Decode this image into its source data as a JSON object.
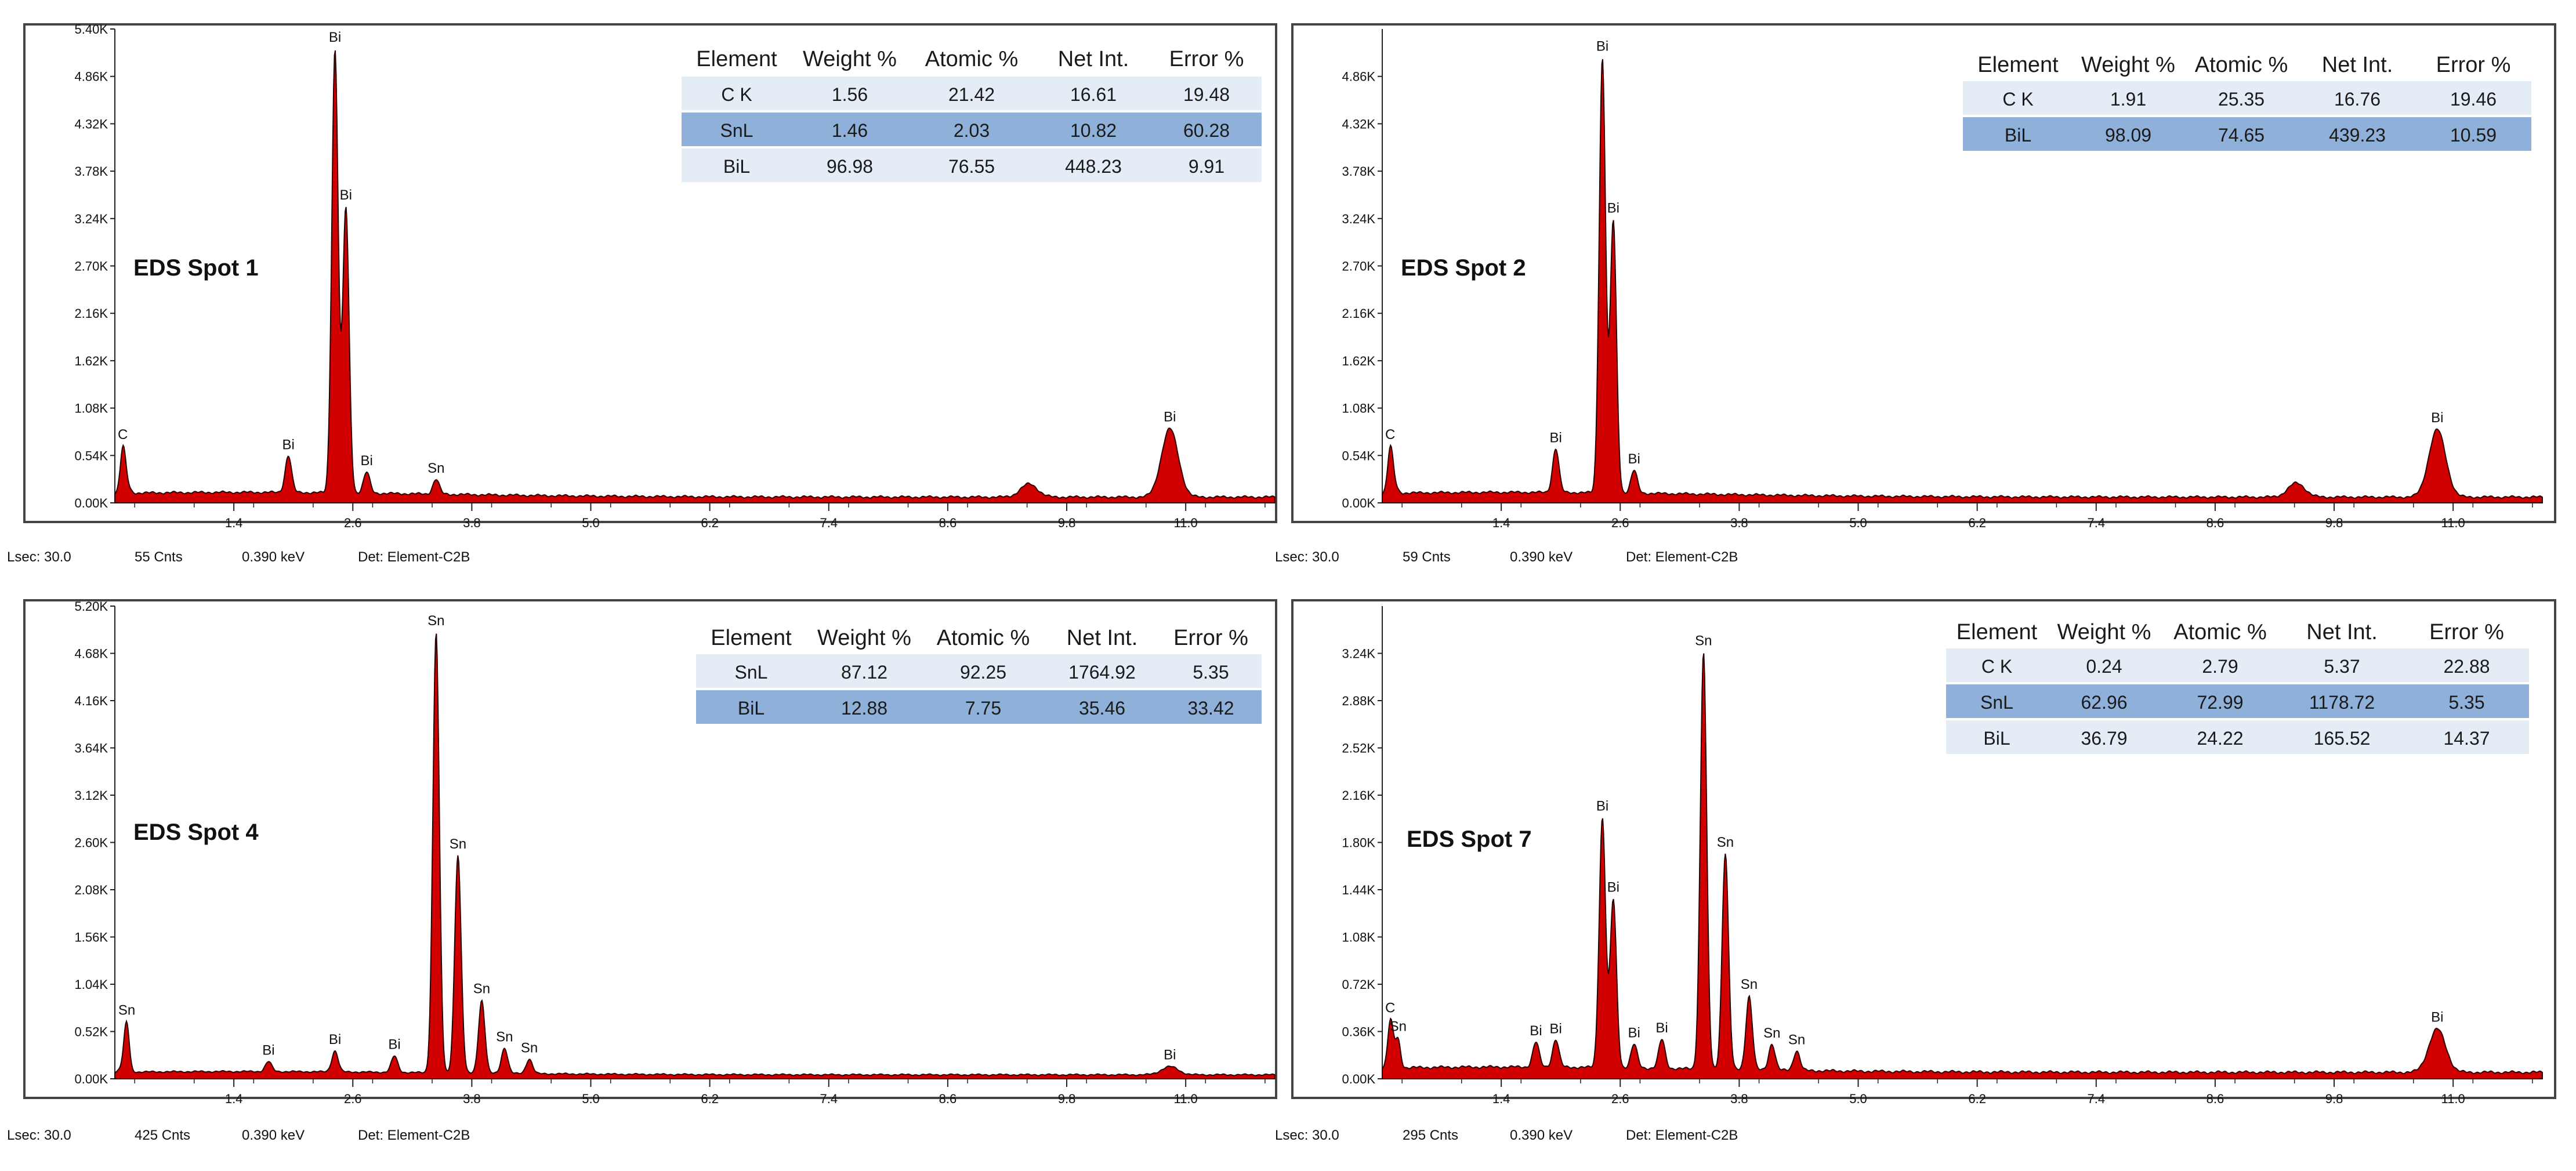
{
  "chart_data": [
    {
      "type": "area",
      "title": "EDS Spot 1",
      "xlim": [
        0.2,
        11.9
      ],
      "ylim": [
        0,
        5400
      ],
      "x_ticks": [
        "1.4",
        "2.6",
        "3.8",
        "5.0",
        "6.2",
        "7.4",
        "8.6",
        "9.8",
        "11.0"
      ],
      "y_ticks": [
        "0.00K",
        "0.54K",
        "1.08K",
        "1.62K",
        "2.16K",
        "2.70K",
        "3.24K",
        "3.78K",
        "4.32K",
        "4.86K",
        "5.40K"
      ],
      "y_tick_values": [
        0,
        540,
        1080,
        1620,
        2160,
        2700,
        3240,
        3780,
        4320,
        4860,
        5400
      ],
      "series": [
        {
          "name": "spectrum",
          "baseline": 120,
          "peaks": [
            {
              "label": "C",
              "x": 0.28,
              "y": 380
            },
            {
              "label": "Bi",
              "x": 1.95,
              "y": 420
            },
            {
              "label": "Bi",
              "x": 2.42,
              "y": 5050
            },
            {
              "label": "Bi",
              "x": 2.53,
              "y": 3250
            },
            {
              "label": "Bi",
              "x": 2.74,
              "y": 240
            },
            {
              "label": "Sn",
              "x": 3.44,
              "y": 170
            },
            {
              "label": "",
              "x": 9.42,
              "y": 150
            },
            {
              "label": "Bi",
              "x": 10.84,
              "y": 780
            }
          ]
        }
      ],
      "table": {
        "headers": [
          "Element",
          "Weight %",
          "Atomic %",
          "Net Int.",
          "Error %"
        ],
        "rows": [
          [
            "C K",
            "1.56",
            "21.42",
            "16.61",
            "19.48"
          ],
          [
            "SnL",
            "1.46",
            "2.03",
            "10.82",
            "60.28"
          ],
          [
            "BiL",
            "96.98",
            "76.55",
            "448.23",
            "9.91"
          ]
        ]
      },
      "footer": {
        "lsec": "Lsec: 30.0",
        "cnts": "55 Cnts",
        "kev": "0.390 keV",
        "det": "Det: Element-C2B"
      }
    },
    {
      "type": "area",
      "title": "EDS Spot 2",
      "xlim": [
        0.2,
        11.9
      ],
      "ylim": [
        0,
        5400
      ],
      "x_ticks": [
        "1.4",
        "2.6",
        "3.8",
        "5.0",
        "6.2",
        "7.4",
        "8.6",
        "9.8",
        "11.0"
      ],
      "y_ticks": [
        "0.00K",
        "0.54K",
        "1.08K",
        "1.62K",
        "2.16K",
        "2.70K",
        "3.24K",
        "3.78K",
        "4.32K",
        "4.86K"
      ],
      "y_tick_values": [
        0,
        540,
        1080,
        1620,
        2160,
        2700,
        3240,
        3780,
        4320,
        4860
      ],
      "series": [
        {
          "name": "spectrum",
          "baseline": 120,
          "peaks": [
            {
              "label": "C",
              "x": 0.28,
              "y": 380
            },
            {
              "label": "Bi",
              "x": 1.95,
              "y": 500
            },
            {
              "label": "Bi",
              "x": 2.42,
              "y": 4950
            },
            {
              "label": "Bi",
              "x": 2.53,
              "y": 3100
            },
            {
              "label": "Bi",
              "x": 2.74,
              "y": 260
            },
            {
              "label": "",
              "x": 9.42,
              "y": 160
            },
            {
              "label": "Bi",
              "x": 10.84,
              "y": 770
            }
          ]
        }
      ],
      "table": {
        "headers": [
          "Element",
          "Weight %",
          "Atomic %",
          "Net Int.",
          "Error %"
        ],
        "rows": [
          [
            "C K",
            "1.91",
            "25.35",
            "16.76",
            "19.46"
          ],
          [
            "BiL",
            "98.09",
            "74.65",
            "439.23",
            "10.59"
          ]
        ]
      },
      "footer": {
        "lsec": "Lsec: 30.0",
        "cnts": "59 Cnts",
        "kev": "0.390 keV",
        "det": "Det: Element-C2B"
      }
    },
    {
      "type": "area",
      "title": "EDS Spot 4",
      "xlim": [
        0.2,
        11.9
      ],
      "ylim": [
        0,
        5200
      ],
      "x_ticks": [
        "1.4",
        "2.6",
        "3.8",
        "5.0",
        "6.2",
        "7.4",
        "8.6",
        "9.8",
        "11.0"
      ],
      "y_ticks": [
        "0.00K",
        "0.52K",
        "1.04K",
        "1.56K",
        "2.08K",
        "2.60K",
        "3.12K",
        "3.64K",
        "4.16K",
        "4.68K",
        "5.20K"
      ],
      "y_tick_values": [
        0,
        520,
        1040,
        1560,
        2080,
        2600,
        3120,
        3640,
        4160,
        4680,
        5200
      ],
      "series": [
        {
          "name": "spectrum",
          "baseline": 80,
          "peaks": [
            {
              "label": "Sn",
              "x": 0.32,
              "y": 450
            },
            {
              "label": "Bi",
              "x": 1.75,
              "y": 110
            },
            {
              "label": "Bi",
              "x": 2.42,
              "y": 230
            },
            {
              "label": "Bi",
              "x": 3.02,
              "y": 180
            },
            {
              "label": "Sn",
              "x": 3.44,
              "y": 4850
            },
            {
              "label": "Sn",
              "x": 3.66,
              "y": 2400
            },
            {
              "label": "Sn",
              "x": 3.9,
              "y": 800
            },
            {
              "label": "Sn",
              "x": 4.13,
              "y": 280
            },
            {
              "label": "Sn",
              "x": 4.38,
              "y": 160
            },
            {
              "label": "Bi",
              "x": 10.84,
              "y": 90
            }
          ]
        }
      ],
      "table": {
        "headers": [
          "Element",
          "Weight %",
          "Atomic %",
          "Net Int.",
          "Error %"
        ],
        "rows": [
          [
            "SnL",
            "87.12",
            "92.25",
            "1764.92",
            "5.35"
          ],
          [
            "BiL",
            "12.88",
            "7.75",
            "35.46",
            "33.42"
          ]
        ]
      },
      "footer": {
        "lsec": "Lsec: 30.0",
        "cnts": "425 Cnts",
        "kev": "0.390 keV",
        "det": "Det: Element-C2B"
      }
    },
    {
      "type": "area",
      "title": "EDS Spot 7",
      "xlim": [
        0.2,
        11.9
      ],
      "ylim": [
        0,
        3600
      ],
      "x_ticks": [
        "1.4",
        "2.6",
        "3.8",
        "5.0",
        "6.2",
        "7.4",
        "8.6",
        "9.8",
        "11.0"
      ],
      "y_ticks": [
        "0.00K",
        "0.36K",
        "0.72K",
        "1.08K",
        "1.44K",
        "1.80K",
        "2.16K",
        "2.52K",
        "2.88K",
        "3.24K"
      ],
      "y_tick_values": [
        0,
        360,
        720,
        1080,
        1440,
        1800,
        2160,
        2520,
        2880,
        3240
      ],
      "series": [
        {
          "name": "spectrum",
          "baseline": 90,
          "peaks": [
            {
              "label": "C",
              "x": 0.28,
              "y": 250
            },
            {
              "label": "Sn",
              "x": 0.36,
              "y": 190
            },
            {
              "label": "Bi",
              "x": 1.75,
              "y": 190
            },
            {
              "label": "Bi",
              "x": 1.95,
              "y": 210
            },
            {
              "label": "Bi",
              "x": 2.42,
              "y": 1900
            },
            {
              "label": "Bi",
              "x": 2.53,
              "y": 1280
            },
            {
              "label": "Bi",
              "x": 2.74,
              "y": 180
            },
            {
              "label": "Bi",
              "x": 3.02,
              "y": 220
            },
            {
              "label": "Sn",
              "x": 3.44,
              "y": 3180
            },
            {
              "label": "Sn",
              "x": 3.66,
              "y": 1650
            },
            {
              "label": "Sn",
              "x": 3.9,
              "y": 560
            },
            {
              "label": "Sn",
              "x": 4.13,
              "y": 200
            },
            {
              "label": "Sn",
              "x": 4.38,
              "y": 150
            },
            {
              "label": "Bi",
              "x": 10.84,
              "y": 330
            }
          ]
        }
      ],
      "table": {
        "headers": [
          "Element",
          "Weight %",
          "Atomic %",
          "Net Int.",
          "Error %"
        ],
        "rows": [
          [
            "C K",
            "0.24",
            "2.79",
            "5.37",
            "22.88"
          ],
          [
            "SnL",
            "62.96",
            "72.99",
            "1178.72",
            "5.35"
          ],
          [
            "BiL",
            "36.79",
            "24.22",
            "165.52",
            "14.37"
          ]
        ]
      },
      "footer": {
        "lsec": "Lsec: 30.0",
        "cnts": "295 Cnts",
        "kev": "0.390 keV",
        "det": "Det: Element-C2B"
      }
    }
  ],
  "colors": {
    "spectrum_fill": "#d10000",
    "spectrum_stroke": "#2a0000",
    "table_row_light": "#e4ecf6",
    "table_row_dark": "#8fb0d8",
    "frame": "#444444"
  }
}
